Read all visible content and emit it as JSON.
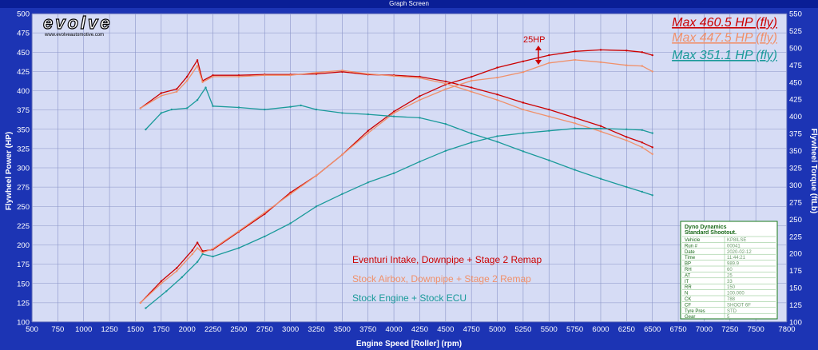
{
  "window": {
    "title": "Graph Screen"
  },
  "logo": {
    "brand": "evolve",
    "url": "www.evolveautomotive.com"
  },
  "max_labels": [
    {
      "text": "Max 460.5 HP (fly)",
      "color": "#cc0000"
    },
    {
      "text": "Max 447.5 HP (fly)",
      "color": "#f0906a"
    },
    {
      "text": "Max 351.1 HP (fly)",
      "color": "#1a9a9a"
    }
  ],
  "annotation": {
    "text": "25HP"
  },
  "legend": [
    {
      "text": "Eventuri Intake, Downpipe + Stage 2 Remap",
      "color": "#cc0000"
    },
    {
      "text": "Stock Airbox, Downpipe + Stage 2 Remap",
      "color": "#f0906a"
    },
    {
      "text": "Stock Engine + Stock ECU",
      "color": "#1a9a9a"
    }
  ],
  "info_box": {
    "title1": "Dyno Dynamics",
    "title2": "Standard Shootout.",
    "rows": [
      [
        "Vehicle",
        "KP8ILSE"
      ],
      [
        "Run #",
        "00041"
      ],
      [
        "Date",
        "2020-02-12"
      ],
      [
        "Time",
        "11:44:21"
      ],
      [
        "BP",
        "989.9"
      ],
      [
        "RH",
        "60"
      ],
      [
        "AT",
        "25"
      ],
      [
        "IT",
        "33"
      ],
      [
        "RR",
        "150"
      ],
      [
        "N",
        "100.000"
      ],
      [
        "CK",
        "788"
      ],
      [
        "CF",
        "SHOOT 6F"
      ],
      [
        "Tyre Pres",
        "STD"
      ],
      [
        "Gear",
        "5"
      ]
    ]
  },
  "chart_data": {
    "type": "line",
    "xlabel": "Engine Speed [Roller] (rpm)",
    "ylabel": "Flywheel Power (HP)",
    "ylabel_right": "Flywheel Torque (ftLb)",
    "xlim": [
      500,
      7800
    ],
    "ylim": [
      100,
      500
    ],
    "ylim_right": [
      100,
      550
    ],
    "x_ticks": [
      500,
      750,
      1000,
      1250,
      1500,
      1750,
      2000,
      2250,
      2500,
      2750,
      3000,
      3250,
      3500,
      3750,
      4000,
      4250,
      4500,
      4750,
      5000,
      5250,
      5500,
      5750,
      6000,
      6250,
      6500,
      6750,
      7000,
      7250,
      7500,
      7800
    ],
    "y_ticks": [
      100,
      125,
      150,
      175,
      200,
      225,
      250,
      275,
      300,
      325,
      350,
      375,
      400,
      425,
      450,
      475,
      500
    ],
    "y_ticks_right": [
      100,
      125,
      150,
      175,
      200,
      225,
      250,
      275,
      300,
      325,
      350,
      375,
      400,
      425,
      450,
      475,
      500,
      525,
      550
    ],
    "grid": true,
    "series": [
      {
        "name": "Eventuri Intake, Downpipe + Stage 2 Remap",
        "measure": "power",
        "color": "#cc0000",
        "x": [
          1550,
          1750,
          1900,
          2050,
          2100,
          2150,
          2250,
          2500,
          2750,
          3000,
          3250,
          3500,
          3750,
          4000,
          4250,
          4500,
          4750,
          5000,
          5250,
          5500,
          5750,
          6000,
          6250,
          6400,
          6500
        ],
        "y": [
          125,
          153,
          170,
          193,
          203,
          192,
          194,
          217,
          240,
          268,
          290,
          317,
          348,
          373,
          393,
          408,
          418,
          430,
          438,
          446,
          451,
          453,
          452,
          450,
          446
        ]
      },
      {
        "name": "Eventuri Intake, Downpipe + Stage 2 Remap",
        "measure": "torque",
        "color": "#cc0000",
        "x": [
          1550,
          1750,
          1900,
          2000,
          2100,
          2150,
          2250,
          2500,
          2750,
          3000,
          3250,
          3500,
          3750,
          4000,
          4250,
          4500,
          4750,
          5000,
          5250,
          5500,
          5750,
          6000,
          6250,
          6400,
          6500
        ],
        "y": [
          412,
          434,
          440,
          458,
          482,
          452,
          460,
          460,
          461,
          461,
          462,
          465,
          461,
          460,
          458,
          451,
          442,
          432,
          420,
          410,
          398,
          386,
          370,
          362,
          355
        ]
      },
      {
        "name": "Stock Airbox, Downpipe + Stage 2 Remap",
        "measure": "power",
        "color": "#f0906a",
        "x": [
          1550,
          1750,
          1900,
          2050,
          2100,
          2150,
          2250,
          2500,
          2750,
          3000,
          3250,
          3500,
          3750,
          4000,
          4250,
          4500,
          4750,
          5000,
          5250,
          5500,
          5750,
          6000,
          6250,
          6400,
          6500
        ],
        "y": [
          125,
          150,
          166,
          188,
          196,
          190,
          195,
          218,
          242,
          266,
          290,
          317,
          345,
          371,
          388,
          402,
          413,
          417,
          424,
          436,
          440,
          437,
          433,
          432,
          425
        ]
      },
      {
        "name": "Stock Airbox, Downpipe + Stage 2 Remap",
        "measure": "torque",
        "color": "#f0906a",
        "x": [
          1550,
          1750,
          1900,
          2000,
          2100,
          2150,
          2250,
          2500,
          2750,
          3000,
          3250,
          3500,
          3750,
          4000,
          4250,
          4500,
          4750,
          5000,
          5250,
          5500,
          5750,
          6000,
          6250,
          6400,
          6500
        ],
        "y": [
          412,
          430,
          436,
          452,
          474,
          450,
          458,
          458,
          460,
          460,
          464,
          467,
          462,
          459,
          456,
          448,
          436,
          424,
          410,
          400,
          390,
          378,
          365,
          355,
          345
        ]
      },
      {
        "name": "Stock Engine + Stock ECU",
        "measure": "power",
        "color": "#1a9a9a",
        "x": [
          1600,
          1800,
          1950,
          2100,
          2150,
          2250,
          2500,
          2750,
          3000,
          3250,
          3500,
          3750,
          4000,
          4250,
          4500,
          4750,
          5000,
          5250,
          5500,
          5750,
          6000,
          6250,
          6400,
          6500
        ],
        "y": [
          118,
          140,
          158,
          178,
          188,
          185,
          196,
          211,
          228,
          250,
          266,
          281,
          293,
          308,
          322,
          333,
          341,
          345,
          348,
          351,
          351,
          350,
          349,
          345
        ]
      },
      {
        "name": "Stock Engine + Stock ECU",
        "measure": "torque",
        "color": "#1a9a9a",
        "x": [
          1600,
          1750,
          1850,
          2000,
          2100,
          2180,
          2250,
          2500,
          2750,
          3000,
          3100,
          3250,
          3500,
          3750,
          4000,
          4250,
          4500,
          4750,
          5000,
          5250,
          5500,
          5750,
          6000,
          6250,
          6400,
          6500
        ],
        "y": [
          381,
          405,
          410,
          412,
          424,
          442,
          415,
          413,
          410,
          414,
          416,
          410,
          405,
          403,
          400,
          398,
          389,
          375,
          363,
          349,
          336,
          322,
          309,
          297,
          290,
          285
        ]
      }
    ],
    "annotations": [
      {
        "text": "25HP",
        "x": 5550,
        "y_from": 424,
        "y_to": 446
      }
    ]
  }
}
